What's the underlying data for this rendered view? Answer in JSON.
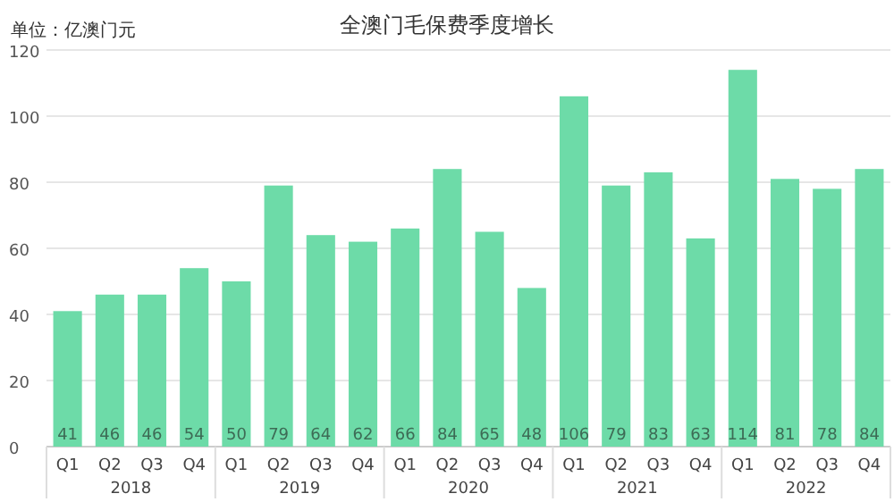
{
  "chart_data": {
    "type": "bar",
    "title": "全澳门毛保费季度增长",
    "ylabel": "单位：亿澳门元",
    "categories": [
      "Q1",
      "Q2",
      "Q3",
      "Q4",
      "Q1",
      "Q2",
      "Q3",
      "Q4",
      "Q1",
      "Q2",
      "Q3",
      "Q4",
      "Q1",
      "Q2",
      "Q3",
      "Q4",
      "Q1",
      "Q2",
      "Q3",
      "Q4"
    ],
    "values": [
      41,
      46,
      46,
      54,
      50,
      79,
      64,
      62,
      66,
      84,
      65,
      48,
      106,
      79,
      83,
      63,
      114,
      81,
      78,
      84
    ],
    "color": "#6ddba8",
    "ylim": [
      0,
      120
    ],
    "yticks": [
      0,
      20,
      40,
      60,
      80,
      100,
      120
    ],
    "grid": "y",
    "data_labels": true,
    "annotations": [
      "2018",
      "2019",
      "2020",
      "2021",
      "2022"
    ]
  }
}
